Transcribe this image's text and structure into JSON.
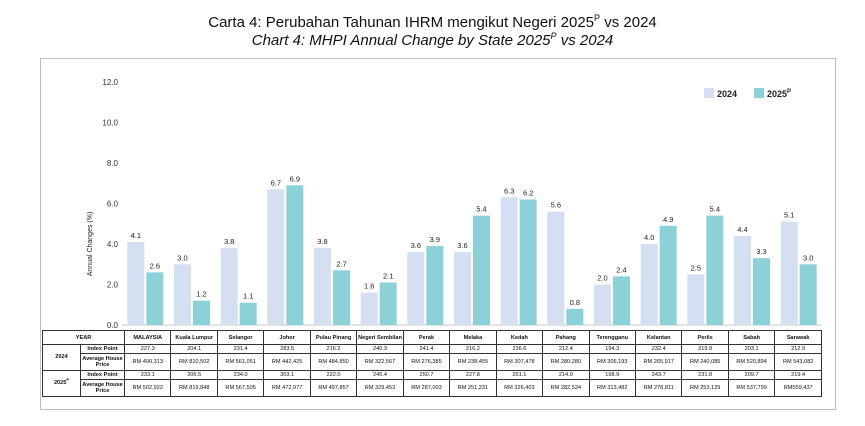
{
  "title": {
    "line1_main": "Carta 4: Perubahan Tahunan IHRM mengikut Negeri 2025",
    "line1_sup": "P",
    "line1_tail": " vs 2024",
    "line2_main": "Chart 4: MHPI Annual Change by State 2025",
    "line2_sup": "P",
    "line2_tail": " vs 2024"
  },
  "colors": {
    "series_2024": "#D4DFF1",
    "series_2025": "#8DD1D8"
  },
  "chart_data": {
    "type": "bar",
    "ylabel": "Annual Changes (%)",
    "ylim": [
      0,
      12
    ],
    "yticks": [
      "0.0",
      "2.0",
      "4.0",
      "6.0",
      "8.0",
      "10.0",
      "12.0"
    ],
    "grid": false,
    "legend_position": "top-right",
    "categories": [
      "MALAYSIA",
      "Kuala Lumpur",
      "Selangor",
      "Johor",
      "Pulau Pinang",
      "Negeri Sembilan",
      "Perak",
      "Melaka",
      "Kedah",
      "Pahang",
      "Terengganu",
      "Kelantan",
      "Perlis",
      "Sabah",
      "Sarawak"
    ],
    "series": [
      {
        "name": "2024",
        "values": [
          4.1,
          3.0,
          3.8,
          6.7,
          3.8,
          1.6,
          3.6,
          3.6,
          6.3,
          5.6,
          2.0,
          4.0,
          2.5,
          4.4,
          5.1
        ],
        "labels": [
          "4.1",
          "3.0",
          "3.8",
          "6.7",
          "3.8",
          "1.6",
          "3.6",
          "3.6",
          "6.3",
          "5.6",
          "2.0",
          "4.0",
          "2.5",
          "4.4",
          "5.1"
        ]
      },
      {
        "name": "2025",
        "name_sup": "P",
        "values": [
          2.6,
          1.2,
          1.1,
          6.9,
          2.7,
          2.1,
          3.9,
          5.4,
          6.2,
          0.8,
          2.4,
          4.9,
          5.4,
          3.3,
          3.0
        ],
        "labels": [
          "2.6",
          "1.2",
          "1.1",
          "6.9",
          "2.7",
          "2.1",
          "3.9",
          "5.4",
          "6.2",
          "0.8",
          "2.4",
          "4.9",
          "5.4",
          "3.3",
          "3.0"
        ]
      }
    ]
  },
  "table": {
    "year_header": "YEAR",
    "year_2024": "2024",
    "year_2025": "2025",
    "year_2025_sup": "P",
    "row_index": "Index Point",
    "row_price": "Average House Price",
    "y2024_index": [
      "227.3",
      "204.1",
      "231.4",
      "283.5",
      "216.2",
      "240.3",
      "241.4",
      "216.2",
      "236.6",
      "212.4",
      "194.3",
      "232.4",
      "219.9",
      "203.1",
      "212.9"
    ],
    "y2024_price": [
      "RM 490,313",
      "RM 810,502",
      "RM 561,051",
      "RM 442,425",
      "RM 484,850",
      "RM 322,567",
      "RM 276,385",
      "RM 238,455",
      "RM 307,478",
      "RM 280,280",
      "RM 306,193",
      "RM 265,917",
      "RM 240,085",
      "RM 520,894",
      "RM 543,082"
    ],
    "y2025_index": [
      "233.1",
      "206.5",
      "234.0",
      "303.1",
      "222.0",
      "245.4",
      "250.7",
      "227.8",
      "251.1",
      "214.0",
      "198.9",
      "243.7",
      "231.8",
      "209.7",
      "219.4"
    ],
    "y2025_price": [
      "RM 502,922",
      "RM 819,848",
      "RM 567,505",
      "RM 472,977",
      "RM 497,857",
      "RM 329,453",
      "RM 287,003",
      "RM 251,231",
      "RM 326,403",
      "RM 282,524",
      "RM 313,482",
      "RM 278,811",
      "RM 253,129",
      "RM 537,799",
      "RM559,437"
    ]
  }
}
